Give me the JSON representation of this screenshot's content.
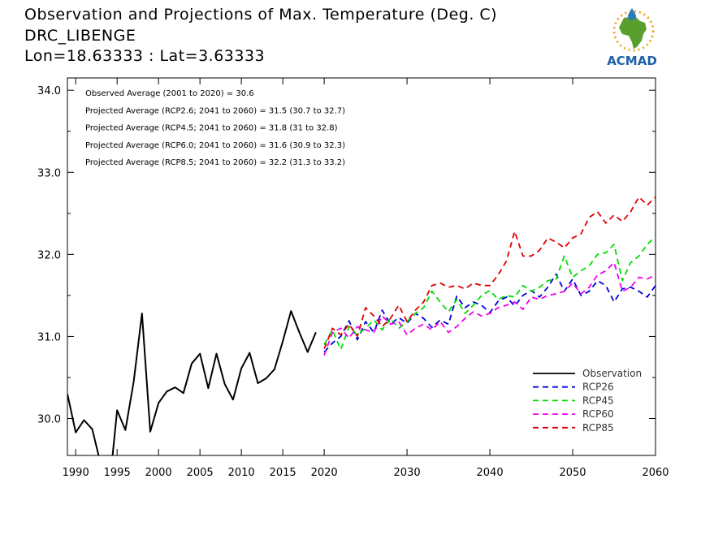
{
  "header": {
    "line1": "Observation and Projections of Max. Temperature (Deg. C)",
    "line2": "DRC_LIBENGE",
    "line3": "Lon=18.63333 : Lat=3.63333"
  },
  "logo": {
    "text": "ACMAD",
    "colors": {
      "africa": "#5a9e2e",
      "drop": "#2b7bb9",
      "sun": "#f2a61e",
      "text": "#1f5fa8"
    }
  },
  "chart_data": {
    "type": "line",
    "title": "Observation and Projections of Max. Temperature (Deg. C)",
    "xlim": [
      1989,
      2060
    ],
    "ylim": [
      29.55,
      34.15
    ],
    "y_ticks": [
      30.0,
      31.0,
      32.0,
      33.0,
      34.0
    ],
    "y_tick_labels": [
      "30.0",
      "31.0",
      "32.0",
      "33.0",
      "34.0"
    ],
    "x_ticks": [
      1990,
      1995,
      2000,
      2005,
      2010,
      2015,
      2020,
      2030,
      2040,
      2050,
      2060
    ],
    "x_tick_labels": [
      "1990",
      "1995",
      "2000",
      "2005",
      "2010",
      "2015",
      "2020",
      "2030",
      "2040",
      "2050",
      "2060"
    ],
    "annotations": [
      "Observed Average (2001 to 2020) = 30.6",
      "Projected Average (RCP2.6; 2041 to 2060) = 31.5 (30.7 to 32.7)",
      "Projected Average (RCP4.5; 2041 to 2060) = 31.8 (31 to 32.8)",
      "Projected Average (RCP6.0; 2041 to 2060) = 31.6 (30.9 to 32.3)",
      "Projected Average (RCP8.5; 2041 to 2060) = 32.2 (31.3 to 33.2)"
    ],
    "legend_position": "bottom-right",
    "grid": false,
    "series": [
      {
        "name": "Observation",
        "color": "#000000",
        "dash": "solid",
        "x": [
          1989,
          1990,
          1991,
          1992,
          1993,
          1994,
          1995,
          1996,
          1997,
          1998,
          1999,
          2000,
          2001,
          2002,
          2003,
          2004,
          2005,
          2006,
          2007,
          2008,
          2009,
          2010,
          2011,
          2012,
          2013,
          2014,
          2015,
          2016,
          2017,
          2018,
          2019,
          2020
        ],
        "y": [
          30.3,
          29.83,
          29.98,
          29.87,
          29.45,
          29.1,
          30.1,
          29.86,
          30.45,
          31.28,
          29.84,
          30.19,
          30.33,
          30.38,
          30.31,
          30.67,
          30.79,
          30.37,
          30.79,
          30.42,
          30.23,
          30.61,
          30.8,
          30.43,
          30.49,
          30.6,
          30.94,
          31.31,
          31.05,
          30.81,
          31.05,
          null
        ]
      },
      {
        "name": "RCP26",
        "color": "#0000dd",
        "dash": "dashed",
        "x": [
          2020,
          2021,
          2022,
          2023,
          2024,
          2025,
          2026,
          2027,
          2028,
          2029,
          2030,
          2031,
          2032,
          2033,
          2034,
          2035,
          2036,
          2037,
          2038,
          2039,
          2040,
          2041,
          2042,
          2043,
          2044,
          2045,
          2046,
          2047,
          2048,
          2049,
          2050,
          2051,
          2052,
          2053,
          2054,
          2055,
          2056,
          2057,
          2058,
          2059,
          2060
        ],
        "y": [
          30.81,
          30.92,
          31.0,
          31.19,
          30.96,
          31.18,
          31.05,
          31.32,
          31.15,
          31.23,
          31.16,
          31.28,
          31.22,
          31.11,
          31.2,
          31.15,
          31.49,
          31.35,
          31.42,
          31.38,
          31.29,
          31.43,
          31.48,
          31.37,
          31.5,
          31.56,
          31.48,
          31.6,
          31.76,
          31.55,
          31.7,
          31.5,
          31.55,
          31.68,
          31.62,
          31.42,
          31.58,
          31.6,
          31.55,
          31.48,
          31.62
        ]
      },
      {
        "name": "RCP45",
        "color": "#00dd00",
        "dash": "dashed",
        "x": [
          2020,
          2021,
          2022,
          2023,
          2024,
          2025,
          2026,
          2027,
          2028,
          2029,
          2030,
          2031,
          2032,
          2033,
          2034,
          2035,
          2036,
          2037,
          2038,
          2039,
          2040,
          2041,
          2042,
          2043,
          2044,
          2045,
          2046,
          2047,
          2048,
          2049,
          2050,
          2051,
          2052,
          2053,
          2054,
          2055,
          2056,
          2057,
          2058,
          2059,
          2060
        ],
        "y": [
          30.9,
          31.08,
          30.84,
          31.12,
          31.02,
          31.1,
          31.2,
          31.08,
          31.22,
          31.1,
          31.18,
          31.28,
          31.35,
          31.55,
          31.42,
          31.3,
          31.45,
          31.28,
          31.38,
          31.5,
          31.56,
          31.45,
          31.5,
          31.48,
          31.62,
          31.55,
          31.6,
          31.68,
          31.7,
          31.98,
          31.72,
          31.8,
          31.86,
          32.0,
          32.02,
          32.12,
          31.68,
          31.9,
          31.98,
          32.12,
          32.22
        ]
      },
      {
        "name": "RCP60",
        "color": "#ee00ee",
        "dash": "dashed",
        "x": [
          2020,
          2021,
          2022,
          2023,
          2024,
          2025,
          2026,
          2027,
          2028,
          2029,
          2030,
          2031,
          2032,
          2033,
          2034,
          2035,
          2036,
          2037,
          2038,
          2039,
          2040,
          2041,
          2042,
          2043,
          2044,
          2045,
          2046,
          2047,
          2048,
          2049,
          2050,
          2051,
          2052,
          2053,
          2054,
          2055,
          2056,
          2057,
          2058,
          2059,
          2060
        ],
        "y": [
          30.77,
          31.05,
          31.1,
          30.98,
          31.12,
          31.08,
          31.05,
          31.25,
          31.15,
          31.18,
          31.02,
          31.1,
          31.15,
          31.08,
          31.18,
          31.05,
          31.12,
          31.22,
          31.3,
          31.25,
          31.28,
          31.35,
          31.38,
          31.42,
          31.33,
          31.48,
          31.45,
          31.5,
          31.52,
          31.55,
          31.65,
          31.52,
          31.6,
          31.75,
          31.8,
          31.9,
          31.55,
          31.6,
          31.72,
          31.7,
          31.75
        ]
      },
      {
        "name": "RCP85",
        "color": "#dd0000",
        "dash": "dashed",
        "x": [
          2020,
          2021,
          2022,
          2023,
          2024,
          2025,
          2026,
          2027,
          2028,
          2029,
          2030,
          2031,
          2032,
          2033,
          2034,
          2035,
          2036,
          2037,
          2038,
          2039,
          2040,
          2041,
          2042,
          2043,
          2044,
          2045,
          2046,
          2047,
          2048,
          2049,
          2050,
          2051,
          2052,
          2053,
          2054,
          2055,
          2056,
          2057,
          2058,
          2059,
          2060
        ],
        "y": [
          30.85,
          31.1,
          31.02,
          31.15,
          31.0,
          31.35,
          31.25,
          31.12,
          31.22,
          31.38,
          31.18,
          31.32,
          31.42,
          31.62,
          31.65,
          31.6,
          31.62,
          31.58,
          31.65,
          31.62,
          31.62,
          31.75,
          31.92,
          32.28,
          31.98,
          31.98,
          32.05,
          32.2,
          32.15,
          32.08,
          32.2,
          32.25,
          32.45,
          32.52,
          32.38,
          32.48,
          32.4,
          32.52,
          32.7,
          32.6,
          32.7
        ]
      }
    ]
  }
}
